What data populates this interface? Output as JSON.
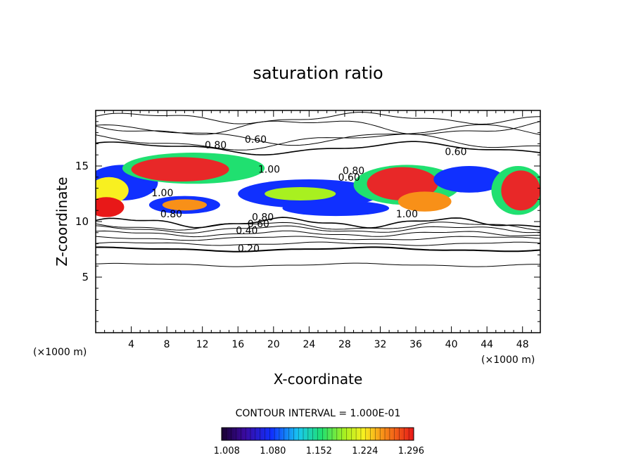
{
  "chart_data": {
    "type": "heatmap",
    "title": "saturation ratio",
    "xlabel": "X-coordinate",
    "ylabel": "Z-coordinate",
    "x_unit_left": "(×1000 m)",
    "x_unit_right": "(×1000 m)",
    "xlim": [
      0,
      50
    ],
    "ylim": [
      0,
      20
    ],
    "x_ticks": [
      "4",
      "8",
      "12",
      "16",
      "20",
      "24",
      "28",
      "32",
      "36",
      "40",
      "44",
      "48"
    ],
    "y_ticks": [
      "5",
      "10",
      "15"
    ],
    "contour_interval_text": "CONTOUR INTERVAL = 1.000E-01",
    "colorbar_ticks": [
      "1.008",
      "1.080",
      "1.152",
      "1.224",
      "1.296"
    ],
    "colorbar_range": [
      1.0,
      1.3
    ],
    "contour_labels": [
      {
        "text": "0.60",
        "x": 18.0,
        "z": 17.4
      },
      {
        "text": "0.80",
        "x": 13.5,
        "z": 16.9
      },
      {
        "text": "0.60",
        "x": 40.5,
        "z": 16.3
      },
      {
        "text": "1.00",
        "x": 19.5,
        "z": 14.7
      },
      {
        "text": "0.80",
        "x": 29.0,
        "z": 14.6
      },
      {
        "text": "0.60",
        "x": 28.5,
        "z": 14.0
      },
      {
        "text": "1.00",
        "x": 7.5,
        "z": 12.6
      },
      {
        "text": "0.80",
        "x": 8.5,
        "z": 10.7
      },
      {
        "text": "1.00",
        "x": 35.0,
        "z": 10.7
      },
      {
        "text": "0.80",
        "x": 18.8,
        "z": 10.4
      },
      {
        "text": "0.60",
        "x": 18.3,
        "z": 9.8
      },
      {
        "text": "0.40",
        "x": 17.0,
        "z": 9.2
      },
      {
        "text": "0.20",
        "x": 17.2,
        "z": 7.6
      }
    ]
  }
}
